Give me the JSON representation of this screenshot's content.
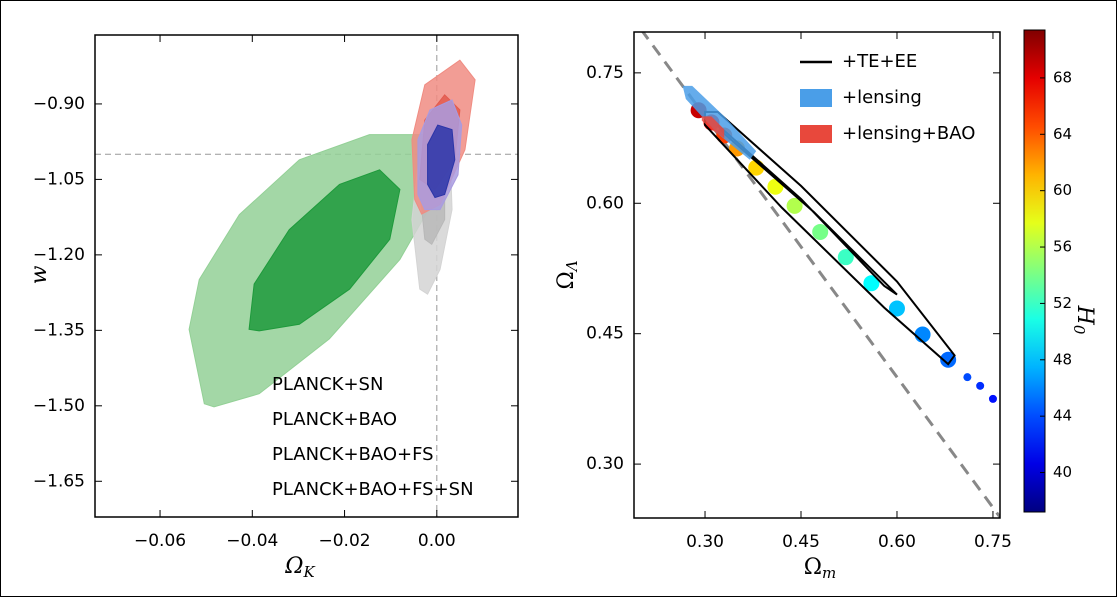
{
  "chart_data": [
    {
      "type": "contour",
      "xlabel": {
        "symbol": "Ω",
        "subscript": "K"
      },
      "ylabel": "w",
      "xlim": [
        -0.0741,
        0.0176
      ],
      "ylim": [
        -1.721,
        -0.763
      ],
      "xticks": [
        {
          "value": -0.06,
          "label": "−0.06"
        },
        {
          "value": -0.04,
          "label": "−0.04"
        },
        {
          "value": -0.02,
          "label": "−0.02"
        },
        {
          "value": 0,
          "label": "0.00"
        }
      ],
      "yticks": [
        {
          "value": -0.9,
          "label": "−0.90"
        },
        {
          "value": -1.05,
          "label": "−1.05"
        },
        {
          "value": -1.2,
          "label": "−1.20"
        },
        {
          "value": -1.35,
          "label": "−1.35"
        },
        {
          "value": -1.5,
          "label": "−1.50"
        },
        {
          "value": -1.65,
          "label": "−1.65"
        }
      ],
      "reference_lines": {
        "x": 0,
        "y": -1
      },
      "series": [
        {
          "name": "PLANCK+SN",
          "color": "#2a9a3a",
          "fills": [
            "#93d096",
            "#1f9a3c"
          ],
          "contours": [
            {
              "x": [
                -0.0504,
                -0.0537,
                -0.0515,
                -0.0428,
                -0.0298,
                -0.0146,
                -0.0015,
                0.0007,
                -0.008,
                -0.0233,
                -0.0385,
                -0.0483
              ],
              "y": [
                -1.496,
                -1.348,
                -1.249,
                -1.12,
                -1.011,
                -0.961,
                -0.961,
                -1.07,
                -1.209,
                -1.367,
                -1.476,
                -1.502
              ]
            },
            {
              "x": [
                -0.0407,
                -0.0396,
                -0.032,
                -0.0211,
                -0.0124,
                -0.008,
                -0.0102,
                -0.0189,
                -0.0298,
                -0.0385
              ],
              "y": [
                -1.348,
                -1.258,
                -1.15,
                -1.06,
                -1.031,
                -1.07,
                -1.169,
                -1.268,
                -1.338,
                -1.351
              ]
            }
          ]
        },
        {
          "name": "PLANCK+BAO",
          "color": "#b0b0b0",
          "fills": [
            "#d4d4d4",
            "#b8b8b8"
          ],
          "contours": [
            {
              "x": [
                -0.0037,
                -0.0054,
                -0.0037,
                -0.0004,
                0.0028,
                0.0033,
                0.0007,
                -0.002
              ],
              "y": [
                -1.268,
                -1.13,
                -0.991,
                -0.912,
                -0.971,
                -1.11,
                -1.229,
                -1.278
              ]
            },
            {
              "x": [
                -0.0026,
                -0.0037,
                -0.0015,
                0.0017,
                0.0017,
                -0.0011
              ],
              "y": [
                -1.169,
                -1.07,
                -0.981,
                -1.011,
                -1.13,
                -1.179
              ]
            }
          ]
        },
        {
          "name": "PLANCK+BAO+FS",
          "color": "#e0473c",
          "fills": [
            "#f08c82",
            "#e35a4e"
          ],
          "contours": [
            {
              "x": [
                -0.0048,
                -0.0054,
                -0.0026,
                0.005,
                0.0083,
                0.0061,
                0.0007,
                -0.0033
              ],
              "y": [
                -1.09,
                -0.971,
                -0.862,
                -0.813,
                -0.852,
                -0.991,
                -1.1,
                -1.119
              ]
            },
            {
              "x": [
                -0.0037,
                -0.0026,
                0.0017,
                0.005,
                0.0039,
                -0.0004
              ],
              "y": [
                -1.05,
                -0.932,
                -0.882,
                -0.912,
                -1.011,
                -1.07
              ]
            }
          ]
        },
        {
          "name": "PLANCK+BAO+FS+SN",
          "color": "#3b3dac",
          "fills": [
            "#a99be0",
            "#2b35a8"
          ],
          "contours": [
            {
              "x": [
                -0.0041,
                -0.0041,
                -0.0015,
                0.0033,
                0.0054,
                0.0046,
                0.0007,
                -0.0026
              ],
              "y": [
                -1.08,
                -0.971,
                -0.912,
                -0.892,
                -0.942,
                -1.041,
                -1.11,
                -1.11
              ]
            },
            {
              "x": [
                -0.002,
                -0.002,
                0.0002,
                0.0033,
                0.0039,
                0.0017,
                -0.0004
              ],
              "y": [
                -1.06,
                -0.981,
                -0.942,
                -0.951,
                -1.011,
                -1.08,
                -1.086
              ]
            }
          ]
        }
      ]
    },
    {
      "type": "contour",
      "xlabel": {
        "symbol": "Ω",
        "subscript": "m"
      },
      "ylabel": {
        "symbol": "Ω",
        "subscript": "Λ"
      },
      "xlim": [
        0.189,
        0.761
      ],
      "ylim": [
        0.238,
        0.797
      ],
      "xticks": [
        {
          "value": 0.3,
          "label": "0.30"
        },
        0.45,
        {
          "value": 0.6,
          "label": "0.60"
        },
        0.75
      ],
      "yticks": [
        {
          "value": 0.3,
          "label": "0.30"
        },
        0.45,
        {
          "value": 0.6,
          "label": "0.60"
        },
        0.75
      ],
      "diagonal": {
        "x": [
          0.2,
          0.762
        ],
        "y": [
          0.8,
          0.238
        ]
      },
      "colormap": "jet",
      "colorbar": {
        "label": {
          "symbol": "H",
          "subscript": "0"
        },
        "lim": [
          37.2,
          71.4
        ],
        "ticks": [
          40,
          44,
          48,
          52,
          56,
          60,
          64,
          68
        ]
      },
      "samples": {
        "x": [
          0.29,
          0.31,
          0.33,
          0.35,
          0.38,
          0.41,
          0.44,
          0.48,
          0.52,
          0.56,
          0.6,
          0.64,
          0.68,
          0.71,
          0.73,
          0.75
        ],
        "y": [
          0.707,
          0.693,
          0.678,
          0.663,
          0.641,
          0.619,
          0.597,
          0.567,
          0.538,
          0.508,
          0.479,
          0.449,
          0.42,
          0.4,
          0.39,
          0.375
        ],
        "z": [
          69,
          67,
          65,
          62,
          60,
          58,
          56,
          54,
          52,
          50,
          48,
          46,
          45,
          44,
          43,
          42
        ]
      },
      "series": [
        {
          "name": "+TE+EE",
          "color": "#000000",
          "style": "line",
          "contours": [
            {
              "x": [
                0.3,
                0.32,
                0.45,
                0.6,
                0.69,
                0.68,
                0.58,
                0.42,
                0.3
              ],
              "y": [
                0.705,
                0.705,
                0.62,
                0.51,
                0.425,
                0.415,
                0.48,
                0.595,
                0.69
              ]
            },
            {
              "x": [
                0.32,
                0.45,
                0.58,
                0.6,
                0.47,
                0.33
              ],
              "y": [
                0.69,
                0.605,
                0.505,
                0.495,
                0.59,
                0.68
              ]
            }
          ]
        },
        {
          "name": "+lensing",
          "color": "#4a9ee8",
          "style": "patch",
          "contours": [
            {
              "x": [
                0.265,
                0.28,
                0.33,
                0.38,
                0.37,
                0.32,
                0.27
              ],
              "y": [
                0.735,
                0.735,
                0.7,
                0.66,
                0.65,
                0.68,
                0.72
              ]
            }
          ]
        },
        {
          "name": "+lensing+BAO",
          "color": "#e8483c",
          "style": "patch",
          "contours": [
            {
              "x": [
                0.295,
                0.31,
                0.33,
                0.33,
                0.31,
                0.295
              ],
              "y": [
                0.7,
                0.7,
                0.685,
                0.675,
                0.685,
                0.695
              ]
            }
          ]
        }
      ]
    }
  ]
}
